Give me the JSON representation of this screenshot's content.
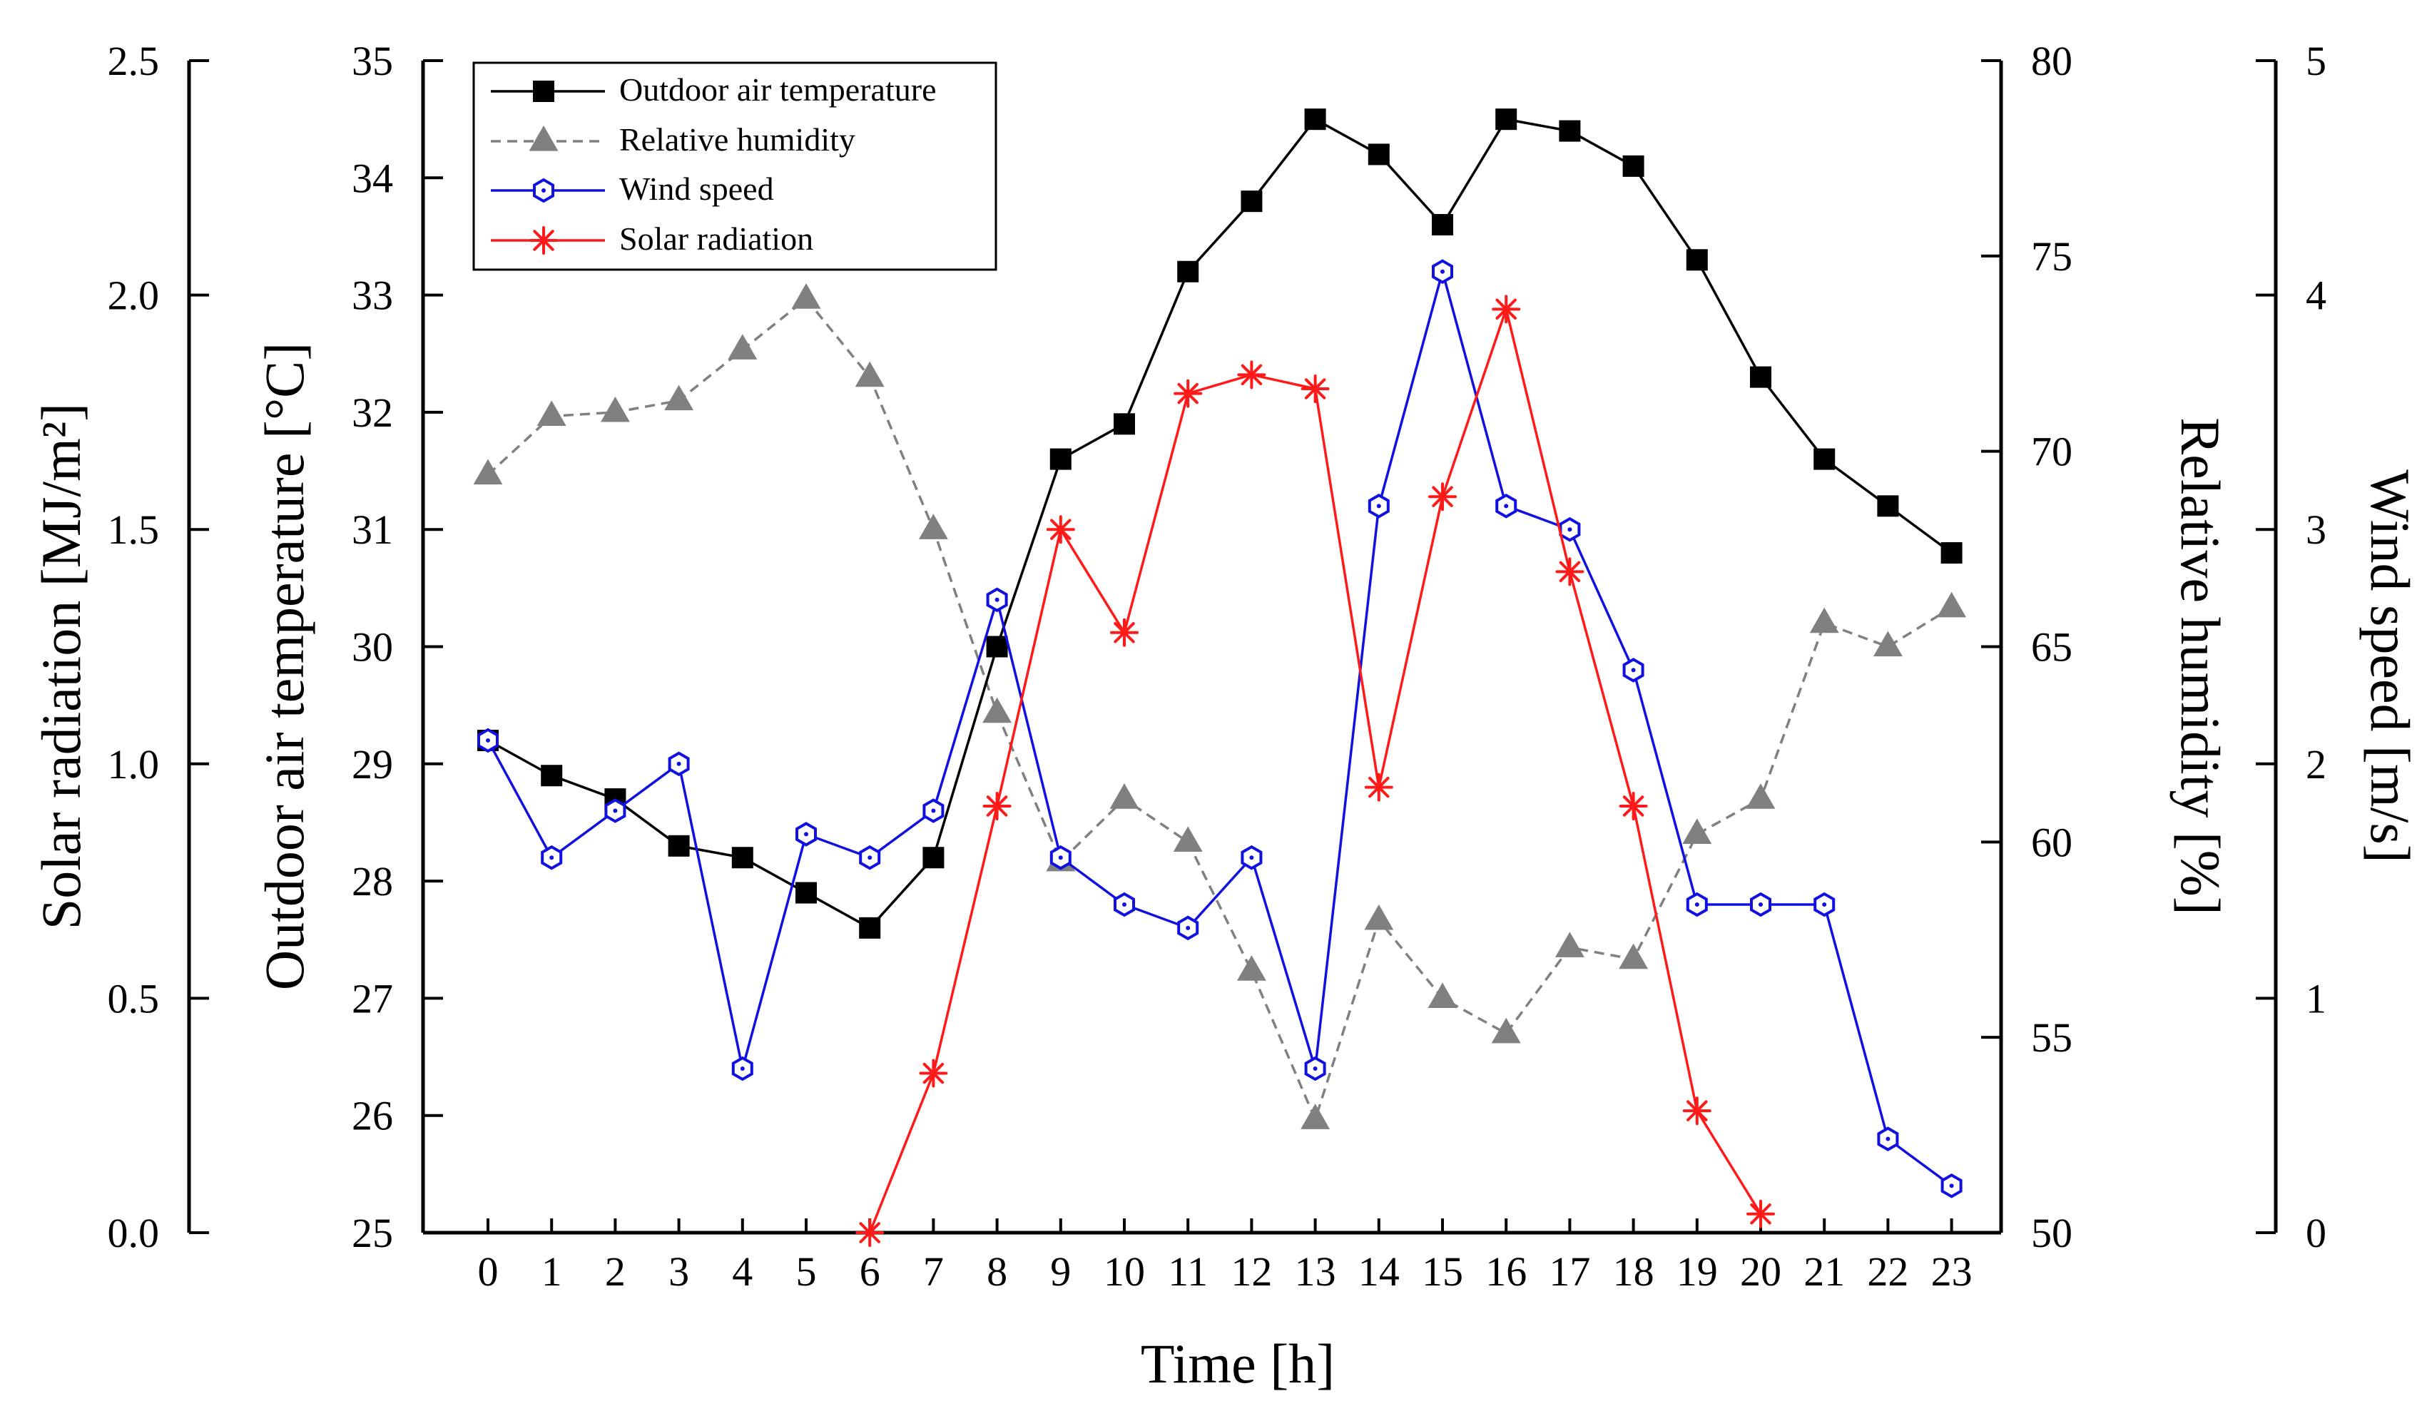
{
  "chart_data": {
    "type": "line",
    "title": "",
    "xlabel": "Time [h]",
    "x": [
      0,
      1,
      2,
      3,
      4,
      5,
      6,
      7,
      8,
      9,
      10,
      11,
      12,
      13,
      14,
      15,
      16,
      17,
      18,
      19,
      20,
      21,
      22,
      23
    ],
    "x_tick_labels": [
      "0",
      "1",
      "2",
      "3",
      "4",
      "5",
      "6",
      "7",
      "8",
      "9",
      "10",
      "11",
      "12",
      "13",
      "14",
      "15",
      "16",
      "17",
      "18",
      "19",
      "20",
      "21",
      "22",
      "23"
    ],
    "axes": {
      "solar": {
        "label": "Solar radiation [MJ/m²]",
        "range": [
          0,
          2.5
        ],
        "ticks": [
          "0.0",
          "0.5",
          "1.0",
          "1.5",
          "2.0",
          "2.5"
        ],
        "side": "far-left"
      },
      "temp": {
        "label": "Outdoor air temperature [°C]",
        "range": [
          25,
          35
        ],
        "ticks": [
          "25",
          "26",
          "27",
          "28",
          "29",
          "30",
          "31",
          "32",
          "33",
          "34",
          "35"
        ],
        "side": "left"
      },
      "rh": {
        "label": "Relative humidity [%]",
        "range": [
          50,
          80
        ],
        "ticks": [
          "50",
          "55",
          "60",
          "65",
          "70",
          "75",
          "80"
        ],
        "side": "right"
      },
      "wind": {
        "label": "Wind speed [m/s]",
        "range": [
          0,
          5
        ],
        "ticks": [
          "0",
          "1",
          "2",
          "3",
          "4",
          "5"
        ],
        "side": "far-right"
      }
    },
    "legend_position": "top-left",
    "series": [
      {
        "name": "Outdoor air temperature",
        "axis": "temp",
        "color": "#000000",
        "marker": "square",
        "dash": "solid",
        "values": [
          29.2,
          28.9,
          28.7,
          28.3,
          28.2,
          27.9,
          27.6,
          28.2,
          30.0,
          31.6,
          31.9,
          33.2,
          33.8,
          34.5,
          34.2,
          33.6,
          34.5,
          34.4,
          34.1,
          33.3,
          32.3,
          31.6,
          31.2,
          30.8
        ]
      },
      {
        "name": "Relative humidity",
        "axis": "rh",
        "color": "#808080",
        "marker": "triangle",
        "dash": "dashed",
        "values": [
          69.4,
          70.9,
          71.0,
          71.3,
          72.6,
          73.9,
          71.9,
          68.0,
          63.3,
          59.5,
          61.1,
          60.0,
          56.7,
          52.9,
          58.0,
          56.0,
          55.1,
          57.3,
          57.0,
          60.2,
          61.1,
          65.6,
          65.0,
          66.0
        ]
      },
      {
        "name": "Wind speed",
        "axis": "wind",
        "color": "#1010e0",
        "marker": "hexagon",
        "dash": "solid",
        "values": [
          2.1,
          1.6,
          1.8,
          2.0,
          0.7,
          1.7,
          1.6,
          1.8,
          2.7,
          1.6,
          1.4,
          1.3,
          1.6,
          0.7,
          3.1,
          4.1,
          3.1,
          3.0,
          2.4,
          1.4,
          1.4,
          1.4,
          0.4,
          0.2
        ]
      },
      {
        "name": "Solar radiation",
        "axis": "solar",
        "color": "#ff1a1a",
        "marker": "asterisk",
        "dash": "solid",
        "values": [
          null,
          null,
          null,
          null,
          null,
          null,
          0.0,
          0.34,
          0.91,
          1.5,
          1.28,
          1.79,
          1.83,
          1.8,
          0.95,
          1.57,
          1.97,
          1.41,
          0.91,
          0.26,
          0.04,
          null,
          null,
          null
        ]
      }
    ]
  }
}
